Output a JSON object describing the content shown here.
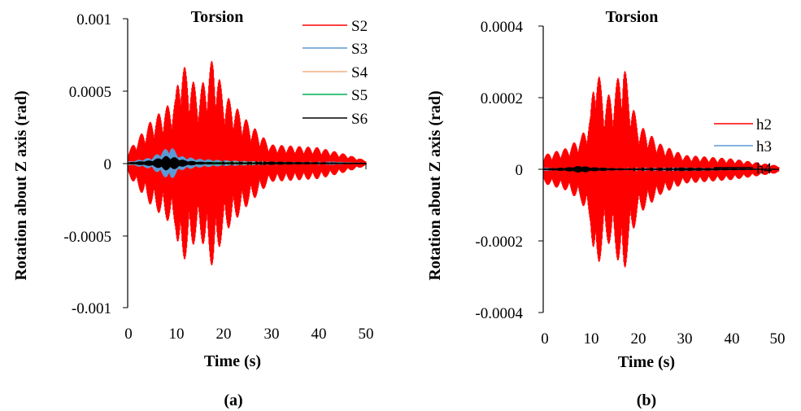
{
  "chart_data": [
    {
      "type": "line",
      "panel": "(a)",
      "title": "Torsion",
      "xlabel": "Time (s)",
      "ylabel": "Rotation about Z axis (rad)",
      "xlim": [
        0,
        50
      ],
      "ylim": [
        -0.001,
        0.001
      ],
      "x_ticks": [
        "0",
        "10",
        "20",
        "30",
        "40",
        "50"
      ],
      "y_ticks": [
        "0.001",
        "0.0005",
        "0",
        "-0.0005",
        "-0.001"
      ],
      "legend_position": "top-right",
      "colors": {
        "S2": "#ff0000",
        "S3": "#5b9bd5",
        "S4": "#f4b183",
        "S5": "#00b050",
        "S6": "#000000"
      },
      "series": [
        {
          "name": "S2",
          "t": [
            0,
            5,
            10,
            11,
            15,
            18,
            20,
            25,
            30,
            40,
            45,
            50
          ],
          "amplitude": [
            8e-05,
            0.0003,
            0.00045,
            0.00072,
            0.0005,
            0.00074,
            0.0005,
            0.0003,
            0.00013,
            0.00011,
            7e-05,
            2e-05
          ]
        },
        {
          "name": "S3",
          "t": [
            0,
            5,
            9,
            11,
            15,
            20,
            30,
            40,
            50
          ],
          "amplitude": [
            1e-05,
            4e-05,
            0.00012,
            5e-05,
            3e-05,
            2e-05,
            1e-05,
            5e-06,
            0
          ]
        },
        {
          "name": "S4",
          "t": [
            0,
            9,
            20,
            50
          ],
          "amplitude": [
            3e-06,
            1e-05,
            4e-06,
            0
          ]
        },
        {
          "name": "S5",
          "t": [
            0,
            9,
            20,
            50
          ],
          "amplitude": [
            2e-06,
            6e-06,
            3e-06,
            0
          ]
        },
        {
          "name": "S6",
          "t": [
            0,
            5,
            8,
            10,
            12,
            15,
            20,
            50
          ],
          "amplitude": [
            5e-06,
            2e-05,
            5e-05,
            4e-05,
            2e-05,
            1e-05,
            5e-06,
            0
          ]
        }
      ],
      "caption": "(a)"
    },
    {
      "type": "line",
      "panel": "(b)",
      "title": "Torsion",
      "xlabel": "Time (s)",
      "ylabel": "Rotation about Z axis (rad)",
      "xlim": [
        0,
        50
      ],
      "ylim": [
        -0.0004,
        0.0004
      ],
      "x_ticks": [
        "0",
        "10",
        "20",
        "30",
        "40",
        "50"
      ],
      "y_ticks": [
        "0.0004",
        "0.0002",
        "0",
        "-0.0002",
        "-0.0004"
      ],
      "legend_position": "right",
      "colors": {
        "h2": "#ff0000",
        "h3": "#5b9bd5",
        "h4": "#000000"
      },
      "series": [
        {
          "name": "h2",
          "t": [
            0,
            5,
            8,
            10,
            11,
            13,
            15,
            17,
            18,
            20,
            25,
            30,
            40,
            45,
            50
          ],
          "amplitude": [
            4e-05,
            6e-05,
            9e-05,
            0.00015,
            0.00031,
            0.0002,
            0.00022,
            0.00031,
            0.00023,
            0.00013,
            7e-05,
            4e-05,
            3e-05,
            2e-05,
            1e-05
          ]
        },
        {
          "name": "h3",
          "t": [
            0,
            8,
            20,
            50
          ],
          "amplitude": [
            1e-06,
            4e-06,
            2e-06,
            0
          ]
        },
        {
          "name": "h4",
          "t": [
            0,
            5,
            8,
            10,
            15,
            20,
            50
          ],
          "amplitude": [
            2e-06,
            5e-06,
            1e-05,
            6e-06,
            3e-06,
            2e-06,
            0
          ]
        }
      ],
      "caption": "(b)"
    }
  ]
}
